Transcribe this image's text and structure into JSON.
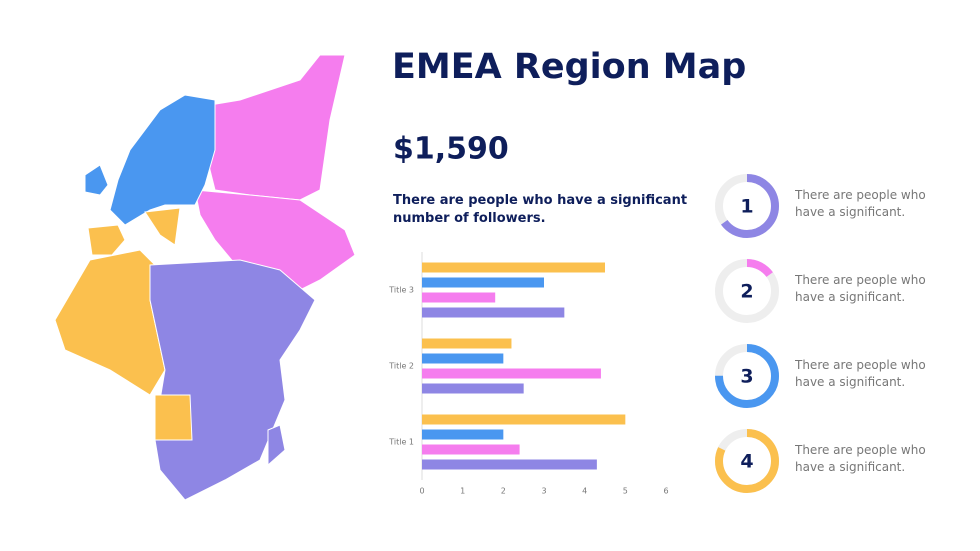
{
  "header": {
    "title": "EMEA Region Map",
    "amount": "$1,590",
    "subtitle": "There are people who have a significant number of followers."
  },
  "chart_data": {
    "type": "hbar",
    "categories": [
      "Title 1",
      "Title 2",
      "Title 3"
    ],
    "series": [
      {
        "color": "#FBC04E",
        "values": [
          5,
          2.2,
          4.5
        ]
      },
      {
        "color": "#4A97F0",
        "values": [
          2,
          2,
          3
        ]
      },
      {
        "color": "#F57DEE",
        "values": [
          2.4,
          4.4,
          1.8
        ]
      },
      {
        "color": "#8E86E4",
        "values": [
          4.3,
          2.5,
          3.5
        ]
      }
    ],
    "xlim": [
      0,
      6
    ],
    "xticks": [
      0,
      1,
      2,
      3,
      4,
      5,
      6
    ]
  },
  "items": [
    {
      "number": "1",
      "text": "There are people who have a significant.",
      "value": 65,
      "color": "#8E86E4"
    },
    {
      "number": "2",
      "text": "There are people who have a significant.",
      "value": 15,
      "color": "#F57DEE"
    },
    {
      "number": "3",
      "text": "There are people who have a significant.",
      "value": 75,
      "color": "#4A97F0"
    },
    {
      "number": "4",
      "text": "There are people who have a significant.",
      "value": 82,
      "color": "#FBC04E"
    }
  ]
}
